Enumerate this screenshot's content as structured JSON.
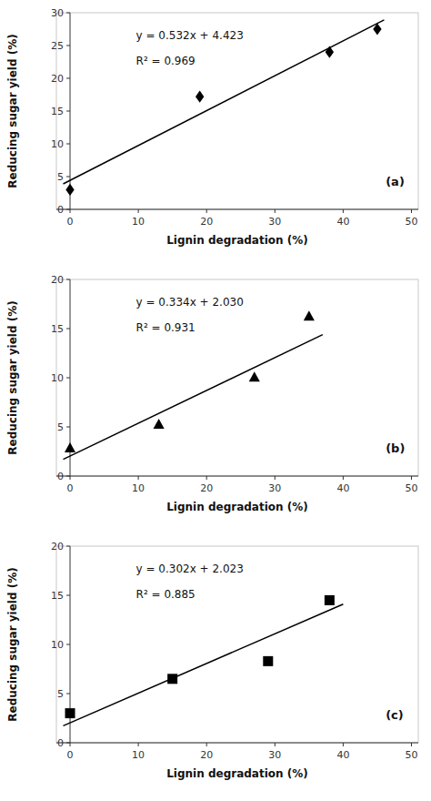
{
  "chart_data": [
    {
      "type": "scatter",
      "x_label": "Lignin degradation (%)",
      "y_label": "Reducing sugar yield (%)",
      "annotations": [
        "y = 0.532x + 4.423",
        "R² = 0.969",
        "(a)"
      ],
      "xlim": [
        -2,
        51
      ],
      "xticks": [
        0,
        10,
        20,
        30,
        40,
        50
      ],
      "ylim": [
        0,
        30
      ],
      "yticks": [
        0,
        5,
        10,
        15,
        20,
        25,
        30
      ],
      "grid": false,
      "series": [
        {
          "type": "scatter",
          "marker": "diamond",
          "color": "black",
          "x": [
            0,
            19,
            38,
            45
          ],
          "values": [
            3.0,
            17.2,
            24.0,
            27.5
          ]
        },
        {
          "type": "line",
          "color": "black",
          "x": [
            -1,
            46
          ],
          "values": [
            3.891,
            28.895
          ]
        }
      ]
    },
    {
      "type": "scatter",
      "x_label": "Lignin degradation (%)",
      "y_label": "Reducing sugar yield (%)",
      "annotations": [
        "y = 0.334x + 2.030",
        "R² = 0.931",
        "(b)"
      ],
      "xlim": [
        -2,
        51
      ],
      "xticks": [
        0,
        10,
        20,
        30,
        40,
        50
      ],
      "ylim": [
        0,
        20
      ],
      "yticks": [
        0,
        5,
        10,
        15,
        20
      ],
      "grid": false,
      "series": [
        {
          "type": "scatter",
          "marker": "triangle",
          "color": "black",
          "x": [
            0,
            13,
            27,
            35
          ],
          "values": [
            2.8,
            5.2,
            10.0,
            16.2
          ]
        },
        {
          "type": "line",
          "color": "black",
          "x": [
            -1,
            37
          ],
          "values": [
            1.696,
            14.388
          ]
        }
      ]
    },
    {
      "type": "scatter",
      "x_label": "Lignin degradation (%)",
      "y_label": "Reducing sugar yield (%)",
      "annotations": [
        "y = 0.302x + 2.023",
        "R² = 0.885",
        "(c)"
      ],
      "xlim": [
        -2,
        51
      ],
      "xticks": [
        0,
        10,
        20,
        30,
        40,
        50
      ],
      "ylim": [
        0,
        20
      ],
      "yticks": [
        0,
        5,
        10,
        15,
        20
      ],
      "grid": false,
      "series": [
        {
          "type": "scatter",
          "marker": "square",
          "color": "black",
          "x": [
            0,
            15,
            29,
            38
          ],
          "values": [
            3.0,
            6.5,
            8.3,
            14.5
          ]
        },
        {
          "type": "line",
          "color": "black",
          "x": [
            -1,
            40
          ],
          "values": [
            1.721,
            14.103
          ]
        }
      ]
    }
  ]
}
